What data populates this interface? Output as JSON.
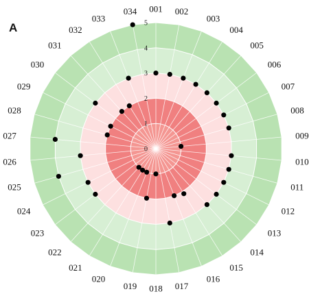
{
  "panel_label": "A",
  "chart_data": {
    "type": "radar",
    "title": "",
    "panel": "A",
    "categories": [
      "001",
      "002",
      "003",
      "004",
      "005",
      "006",
      "007",
      "008",
      "009",
      "010",
      "011",
      "012",
      "013",
      "014",
      "015",
      "016",
      "017",
      "018",
      "019",
      "020",
      "021",
      "022",
      "023",
      "024",
      "025",
      "026",
      "027",
      "028",
      "029",
      "030",
      "031",
      "032",
      "033",
      "034"
    ],
    "series": [
      {
        "values": [
          3.0,
          3.0,
          3.0,
          3.0,
          3.0,
          3.0,
          3.0,
          3.0,
          1.0,
          3.0,
          3.0,
          3.0,
          3.0,
          3.0,
          2.1,
          2.0,
          3.0,
          1.0,
          2.0,
          1.0,
          1.0,
          1.0,
          3.0,
          3.0,
          4.0,
          3.0,
          4.0,
          2.0,
          2.0,
          3.0,
          2.0,
          2.0,
          3.0,
          5.0
        ]
      }
    ],
    "rlim": [
      0,
      5
    ],
    "rticks": [
      0,
      1,
      2,
      3,
      4,
      5
    ],
    "bands": [
      {
        "from": 0,
        "to": 2,
        "color": "#f08080"
      },
      {
        "from": 2,
        "to": 3,
        "color": "#fde0e0"
      },
      {
        "from": 3,
        "to": 4,
        "color": "#d7efd4"
      },
      {
        "from": 4,
        "to": 5,
        "color": "#b9e2b2"
      }
    ],
    "bands_inner_shade": "#f7a8a0",
    "grid_color": "#ffffff",
    "point_color": "#000000",
    "legend": "none"
  }
}
